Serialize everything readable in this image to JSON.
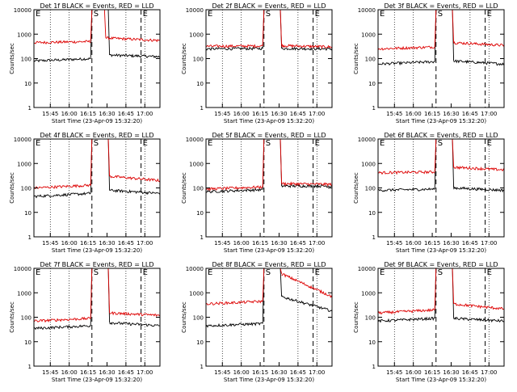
{
  "figure": {
    "xlabel": "Start Time (23-Apr-09 15:32:20)",
    "ylabel": "Counts/sec",
    "x_tick_labels": [
      "15:45",
      "16:00",
      "16:15",
      "16:30",
      "16:45",
      "17:00"
    ],
    "y_tick_labels": [
      "1",
      "10",
      "100",
      "1000",
      "10000"
    ],
    "legend_text": "BLACK = Events, RED = LLD",
    "markers": [
      {
        "label": "E",
        "time_min": 0
      },
      {
        "label": "S",
        "time_min": 46
      },
      {
        "label": "E",
        "time_min": 85
      }
    ],
    "colors": {
      "events": "#000000",
      "lld": "#dd0000",
      "background": "#ffffff"
    }
  },
  "chart_data": [
    {
      "type": "line",
      "title": "Det 1f BLACK = Events, RED = LLD",
      "x_start": "15:32:20",
      "x_range_min": [
        0,
        100
      ],
      "y_scale": "log",
      "ylim": [
        1,
        10000
      ],
      "series": [
        {
          "name": "Events",
          "segments": [
            {
              "x": [
                0,
                45
              ],
              "y": [
                80,
                100
              ]
            },
            {
              "x": [
                60,
                100
              ],
              "y": [
                140,
                120
              ]
            }
          ]
        },
        {
          "name": "LLD",
          "segments": [
            {
              "x": [
                0,
                45
              ],
              "y": [
                450,
                500
              ]
            },
            {
              "x": [
                57,
                100
              ],
              "y": [
                700,
                550
              ]
            }
          ]
        }
      ]
    },
    {
      "type": "line",
      "title": "Det 2f BLACK = Events, RED = LLD",
      "x_start": "15:32:20",
      "x_range_min": [
        0,
        100
      ],
      "y_scale": "log",
      "ylim": [
        1,
        10000
      ],
      "series": [
        {
          "name": "Events",
          "segments": [
            {
              "x": [
                0,
                45
              ],
              "y": [
                250,
                260
              ]
            },
            {
              "x": [
                60,
                100
              ],
              "y": [
                260,
                250
              ]
            }
          ]
        },
        {
          "name": "LLD",
          "segments": [
            {
              "x": [
                0,
                45
              ],
              "y": [
                320,
                330
              ]
            },
            {
              "x": [
                60,
                100
              ],
              "y": [
                340,
                300
              ]
            }
          ]
        }
      ]
    },
    {
      "type": "line",
      "title": "Det 3f BLACK = Events, RED = LLD",
      "x_start": "15:32:20",
      "x_range_min": [
        0,
        100
      ],
      "y_scale": "log",
      "ylim": [
        1,
        10000
      ],
      "series": [
        {
          "name": "Events",
          "segments": [
            {
              "x": [
                0,
                45
              ],
              "y": [
                60,
                75
              ]
            },
            {
              "x": [
                60,
                100
              ],
              "y": [
                80,
                60
              ]
            }
          ]
        },
        {
          "name": "LLD",
          "segments": [
            {
              "x": [
                0,
                45
              ],
              "y": [
                250,
                300
              ]
            },
            {
              "x": [
                60,
                100
              ],
              "y": [
                450,
                350
              ]
            }
          ]
        }
      ]
    },
    {
      "type": "line",
      "title": "Det 4f BLACK = Events, RED = LLD",
      "x_start": "15:32:20",
      "x_range_min": [
        0,
        100
      ],
      "y_scale": "log",
      "ylim": [
        1,
        10000
      ],
      "series": [
        {
          "name": "Events",
          "segments": [
            {
              "x": [
                0,
                45
              ],
              "y": [
                45,
                60
              ]
            },
            {
              "x": [
                60,
                100
              ],
              "y": [
                80,
                60
              ]
            }
          ]
        },
        {
          "name": "LLD",
          "segments": [
            {
              "x": [
                0,
                45
              ],
              "y": [
                100,
                130
              ]
            },
            {
              "x": [
                60,
                100
              ],
              "y": [
                300,
                200
              ]
            }
          ]
        }
      ]
    },
    {
      "type": "line",
      "title": "Det 5f BLACK = Events, RED = LLD",
      "x_start": "15:32:20",
      "x_range_min": [
        0,
        100
      ],
      "y_scale": "log",
      "ylim": [
        1,
        10000
      ],
      "series": [
        {
          "name": "Events",
          "segments": [
            {
              "x": [
                0,
                45
              ],
              "y": [
                70,
                85
              ]
            },
            {
              "x": [
                60,
                100
              ],
              "y": [
                120,
                120
              ]
            }
          ]
        },
        {
          "name": "LLD",
          "segments": [
            {
              "x": [
                0,
                45
              ],
              "y": [
                90,
                110
              ]
            },
            {
              "x": [
                60,
                100
              ],
              "y": [
                150,
                140
              ]
            }
          ]
        }
      ]
    },
    {
      "type": "line",
      "title": "Det 6f BLACK = Events, RED = LLD",
      "x_start": "15:32:20",
      "x_range_min": [
        0,
        100
      ],
      "y_scale": "log",
      "ylim": [
        1,
        10000
      ],
      "series": [
        {
          "name": "Events",
          "segments": [
            {
              "x": [
                0,
                45
              ],
              "y": [
                80,
                90
              ]
            },
            {
              "x": [
                60,
                100
              ],
              "y": [
                100,
                80
              ]
            }
          ]
        },
        {
          "name": "LLD",
          "segments": [
            {
              "x": [
                0,
                45
              ],
              "y": [
                420,
                450
              ]
            },
            {
              "x": [
                60,
                100
              ],
              "y": [
                700,
                550
              ]
            }
          ]
        }
      ]
    },
    {
      "type": "line",
      "title": "Det 7f BLACK = Events, RED = LLD",
      "x_start": "15:32:20",
      "x_range_min": [
        0,
        100
      ],
      "y_scale": "log",
      "ylim": [
        1,
        10000
      ],
      "series": [
        {
          "name": "Events",
          "segments": [
            {
              "x": [
                0,
                45
              ],
              "y": [
                35,
                45
              ]
            },
            {
              "x": [
                60,
                100
              ],
              "y": [
                60,
                45
              ]
            }
          ]
        },
        {
          "name": "LLD",
          "segments": [
            {
              "x": [
                0,
                45
              ],
              "y": [
                70,
                90
              ]
            },
            {
              "x": [
                60,
                100
              ],
              "y": [
                150,
                120
              ]
            }
          ]
        }
      ]
    },
    {
      "type": "line",
      "title": "Det 8f BLACK = Events, RED = LLD",
      "x_start": "15:32:20",
      "x_range_min": [
        0,
        100
      ],
      "y_scale": "log",
      "ylim": [
        1,
        10000
      ],
      "series": [
        {
          "name": "Events",
          "segments": [
            {
              "x": [
                0,
                45
              ],
              "y": [
                45,
                55
              ]
            },
            {
              "x": [
                60,
                100
              ],
              "y": [
                700,
                180
              ]
            }
          ]
        },
        {
          "name": "LLD",
          "segments": [
            {
              "x": [
                0,
                45
              ],
              "y": [
                350,
                450
              ]
            },
            {
              "x": [
                60,
                100
              ],
              "y": [
                6000,
                700
              ]
            }
          ]
        }
      ]
    },
    {
      "type": "line",
      "title": "Det 9f BLACK = Events, RED = LLD",
      "x_start": "15:32:20",
      "x_range_min": [
        0,
        100
      ],
      "y_scale": "log",
      "ylim": [
        1,
        10000
      ],
      "series": [
        {
          "name": "Events",
          "segments": [
            {
              "x": [
                0,
                45
              ],
              "y": [
                70,
                90
              ]
            },
            {
              "x": [
                60,
                100
              ],
              "y": [
                90,
                70
              ]
            }
          ]
        },
        {
          "name": "LLD",
          "segments": [
            {
              "x": [
                0,
                45
              ],
              "y": [
                150,
                200
              ]
            },
            {
              "x": [
                60,
                100
              ],
              "y": [
                350,
                220
              ]
            }
          ]
        }
      ]
    }
  ]
}
